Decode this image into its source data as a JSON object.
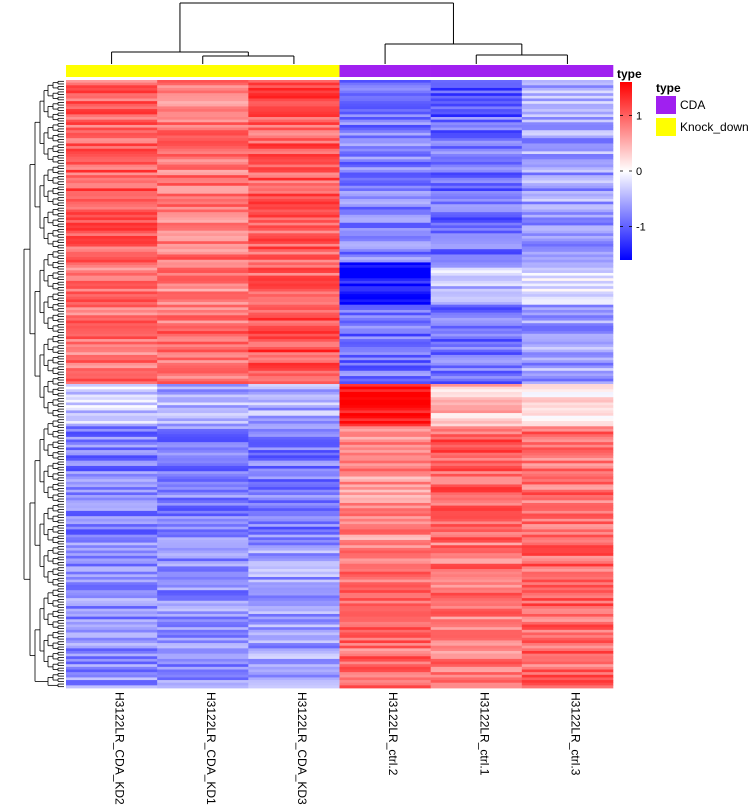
{
  "chart_data": {
    "type": "heatmap",
    "title": "",
    "xlabel": "",
    "ylabel": "",
    "columns": [
      "H3122LR_CDA_KD2",
      "H3122LR_CDA_KD1",
      "H3122LR_CDA_KD3",
      "H3122LR_ctrl.2",
      "H3122LR_ctrl.1",
      "H3122LR_ctrl.3"
    ],
    "column_type": [
      "Knock_down",
      "Knock_down",
      "Knock_down",
      "CDA",
      "CDA",
      "CDA"
    ],
    "approx_row_count": 230,
    "row_blocks": [
      {
        "share": 0.06,
        "values": [
          1.0,
          0.8,
          1.1,
          -0.9,
          -1.1,
          -0.5
        ]
      },
      {
        "share": 0.24,
        "values": [
          1.0,
          0.85,
          1.0,
          -0.8,
          -0.9,
          -0.6
        ]
      },
      {
        "share": 0.07,
        "values": [
          0.9,
          0.8,
          1.0,
          -1.5,
          -0.4,
          -0.2
        ]
      },
      {
        "share": 0.13,
        "values": [
          0.85,
          0.9,
          1.1,
          -0.9,
          -0.9,
          -0.6
        ]
      },
      {
        "share": 0.07,
        "values": [
          -0.3,
          -0.5,
          -0.5,
          1.6,
          0.4,
          0.1
        ]
      },
      {
        "share": 0.19,
        "values": [
          -0.8,
          -0.8,
          -0.8,
          0.7,
          1.0,
          0.9
        ]
      },
      {
        "share": 0.24,
        "values": [
          -0.7,
          -0.7,
          -0.6,
          0.9,
          0.85,
          0.95
        ]
      }
    ],
    "legends": {
      "type": {
        "title": "type",
        "entries": [
          {
            "label": "CDA",
            "color": "#a020f0"
          },
          {
            "label": "Knock_down",
            "color": "#ffff00"
          }
        ]
      },
      "colorbar": {
        "title": "type",
        "ticks": [
          1,
          0,
          -1
        ],
        "range": [
          -1.6,
          1.6
        ],
        "colors": {
          "low": "#0000ff",
          "mid": "#ffffff",
          "high": "#ff0000"
        }
      }
    },
    "legend_position": "right",
    "dendrograms": {
      "rows": true,
      "columns": true
    }
  }
}
